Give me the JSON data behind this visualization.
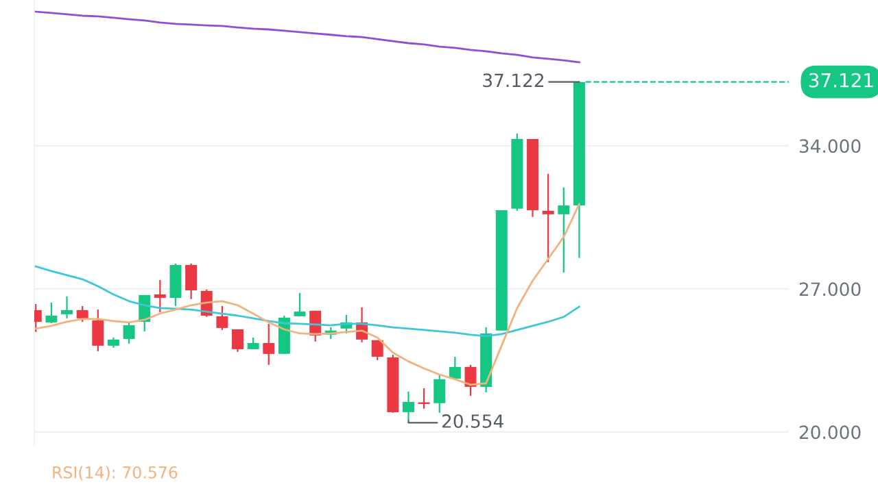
{
  "chart_data": {
    "type": "candlestick",
    "categories": [
      null,
      null,
      null,
      null,
      null,
      null,
      null,
      null,
      null,
      null,
      null,
      null,
      null,
      null,
      null,
      null,
      null,
      null,
      null,
      null,
      null,
      null,
      null,
      null,
      null,
      null,
      null,
      null,
      null,
      null,
      null,
      null,
      null,
      null,
      null,
      null
    ],
    "ohlc": [
      [
        25.96,
        26.26,
        24.89,
        25.39
      ],
      [
        25.36,
        26.33,
        25.32,
        25.69
      ],
      [
        25.76,
        26.63,
        25.56,
        25.96
      ],
      [
        25.96,
        26.16,
        25.39,
        25.56
      ],
      [
        25.46,
        25.99,
        23.95,
        24.22
      ],
      [
        24.22,
        24.62,
        24.12,
        24.52
      ],
      [
        24.55,
        25.32,
        24.32,
        25.22
      ],
      [
        25.39,
        26.7,
        24.92,
        26.7
      ],
      [
        26.73,
        27.43,
        25.86,
        26.56
      ],
      [
        26.56,
        28.24,
        26.16,
        28.17
      ],
      [
        28.17,
        28.24,
        26.5,
        26.93
      ],
      [
        26.9,
        26.97,
        25.63,
        25.69
      ],
      [
        25.66,
        26.16,
        24.99,
        25.09
      ],
      [
        25.02,
        25.02,
        23.92,
        24.05
      ],
      [
        24.05,
        24.62,
        24.05,
        24.35
      ],
      [
        24.35,
        25.29,
        23.28,
        23.82
      ],
      [
        23.82,
        25.69,
        23.82,
        25.59
      ],
      [
        25.66,
        26.8,
        25.66,
        25.89
      ],
      [
        25.93,
        25.93,
        24.42,
        24.72
      ],
      [
        24.76,
        25.12,
        24.55,
        24.96
      ],
      [
        25.06,
        25.73,
        24.82,
        25.36
      ],
      [
        25.36,
        26.1,
        24.39,
        24.52
      ],
      [
        24.49,
        24.49,
        23.52,
        23.68
      ],
      [
        23.65,
        23.78,
        20.94,
        20.97
      ],
      [
        20.97,
        21.98,
        20.554,
        21.47
      ],
      [
        21.47,
        22.14,
        21.14,
        21.41
      ],
      [
        21.41,
        22.81,
        20.94,
        22.58
      ],
      [
        22.61,
        23.68,
        22.61,
        23.18
      ],
      [
        23.18,
        23.28,
        21.77,
        22.21
      ],
      [
        22.21,
        25.12,
        21.94,
        24.82
      ],
      [
        24.96,
        30.85,
        24.96,
        30.85
      ],
      [
        30.92,
        34.6,
        30.82,
        34.33
      ],
      [
        34.33,
        34.33,
        30.52,
        30.85
      ],
      [
        30.82,
        32.63,
        28.31,
        30.65
      ],
      [
        30.65,
        31.96,
        27.8,
        31.08
      ],
      [
        31.08,
        37.122,
        28.51,
        37.121
      ]
    ],
    "colors": [
      "#ea3943",
      "#16c784",
      "#16c784",
      "#ea3943",
      "#ea3943",
      "#16c784",
      "#16c784",
      "#16c784",
      "#ea3943",
      "#16c784",
      "#ea3943",
      "#ea3943",
      "#ea3943",
      "#ea3943",
      "#16c784",
      "#ea3943",
      "#16c784",
      "#16c784",
      "#ea3943",
      "#16c784",
      "#16c784",
      "#ea3943",
      "#ea3943",
      "#ea3943",
      "#16c784",
      "#ea3943",
      "#16c784",
      "#16c784",
      "#ea3943",
      "#16c784",
      "#16c784",
      "#16c784",
      "#ea3943",
      "#ea3943",
      "#16c784",
      "#16c784"
    ],
    "series": [
      {
        "type": "line",
        "color": "#8e4fd6",
        "values": [
          40.56,
          40.5,
          40.43,
          40.36,
          40.33,
          40.26,
          40.19,
          40.13,
          40.03,
          39.96,
          39.93,
          39.89,
          39.86,
          39.79,
          39.73,
          39.69,
          39.63,
          39.56,
          39.49,
          39.43,
          39.36,
          39.32,
          39.22,
          39.12,
          39.02,
          38.96,
          38.85,
          38.79,
          38.69,
          38.62,
          38.52,
          38.45,
          38.32,
          38.25,
          38.18,
          38.08
        ]
      },
      {
        "type": "line",
        "color": "#3ec6d9",
        "values": [
          28.1,
          27.87,
          27.67,
          27.47,
          27.13,
          26.73,
          26.4,
          26.2,
          26.06,
          26.03,
          25.99,
          25.89,
          25.79,
          25.69,
          25.56,
          25.43,
          25.32,
          25.29,
          25.26,
          25.22,
          25.29,
          25.29,
          25.22,
          25.12,
          25.06,
          24.99,
          24.92,
          24.86,
          24.76,
          24.69,
          24.79,
          24.99,
          25.19,
          25.39,
          25.63,
          26.13
        ]
      },
      {
        "type": "line",
        "color": "#f2b27e",
        "values": [
          25.06,
          25.19,
          25.39,
          25.53,
          25.53,
          25.43,
          25.36,
          25.49,
          25.79,
          25.99,
          26.2,
          26.33,
          26.4,
          26.2,
          25.79,
          25.36,
          25.02,
          24.82,
          24.79,
          24.82,
          24.89,
          24.96,
          24.62,
          23.88,
          23.45,
          23.11,
          22.81,
          22.58,
          22.31,
          22.38,
          24.22,
          26.06,
          27.4,
          28.47,
          29.54,
          31.15
        ]
      }
    ],
    "ylim": [
      19.36,
      41.13
    ],
    "yticks": [
      {
        "value": 20,
        "label": "20.000"
      },
      {
        "value": 27,
        "label": "27.000"
      },
      {
        "value": 34,
        "label": "34.000"
      }
    ],
    "grid": "y",
    "ref_lines": [
      {
        "axis": "y",
        "value": 37.121,
        "label": "37.121",
        "color": "#16c784",
        "line_style": "dashed"
      }
    ],
    "annotations": [
      "37.122",
      "20.554",
      "RSI(14): 70.576"
    ]
  }
}
